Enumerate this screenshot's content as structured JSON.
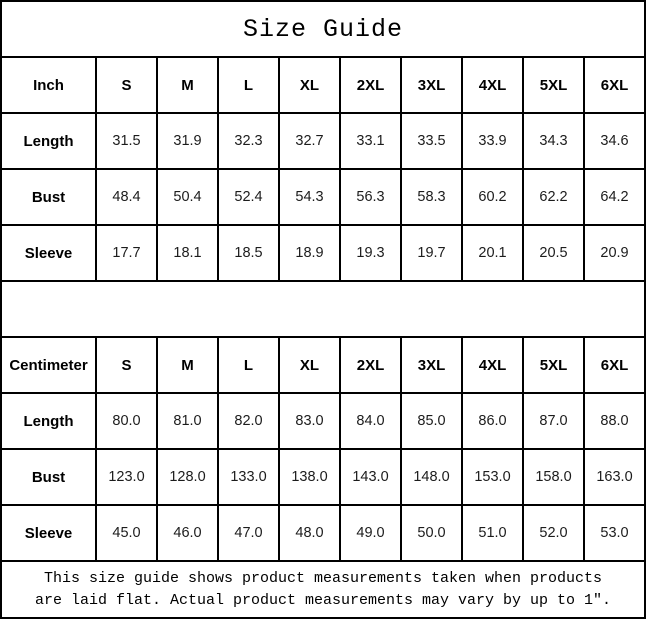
{
  "title": "Size Guide",
  "colors": {
    "border": "#000000",
    "background": "#ffffff",
    "header_text": "#000000",
    "value_text": "#1c1c1c"
  },
  "tables": [
    {
      "unit_label": "Inch",
      "sizes": [
        "S",
        "M",
        "L",
        "XL",
        "2XL",
        "3XL",
        "4XL",
        "5XL",
        "6XL"
      ],
      "rows": [
        {
          "label": "Length",
          "values": [
            "31.5",
            "31.9",
            "32.3",
            "32.7",
            "33.1",
            "33.5",
            "33.9",
            "34.3",
            "34.6"
          ]
        },
        {
          "label": "Bust",
          "values": [
            "48.4",
            "50.4",
            "52.4",
            "54.3",
            "56.3",
            "58.3",
            "60.2",
            "62.2",
            "64.2"
          ]
        },
        {
          "label": "Sleeve",
          "values": [
            "17.7",
            "18.1",
            "18.5",
            "18.9",
            "19.3",
            "19.7",
            "20.1",
            "20.5",
            "20.9"
          ]
        }
      ]
    },
    {
      "unit_label": "Centimeter",
      "sizes": [
        "S",
        "M",
        "L",
        "XL",
        "2XL",
        "3XL",
        "4XL",
        "5XL",
        "6XL"
      ],
      "rows": [
        {
          "label": "Length",
          "values": [
            "80.0",
            "81.0",
            "82.0",
            "83.0",
            "84.0",
            "85.0",
            "86.0",
            "87.0",
            "88.0"
          ]
        },
        {
          "label": "Bust",
          "values": [
            "123.0",
            "128.0",
            "133.0",
            "138.0",
            "143.0",
            "148.0",
            "153.0",
            "158.0",
            "163.0"
          ]
        },
        {
          "label": "Sleeve",
          "values": [
            "45.0",
            "46.0",
            "47.0",
            "48.0",
            "49.0",
            "50.0",
            "51.0",
            "52.0",
            "53.0"
          ]
        }
      ]
    }
  ],
  "footer": {
    "line1": "This size guide shows product measurements taken when products",
    "line2": "are laid flat. Actual product measurements may vary by up to 1″."
  }
}
